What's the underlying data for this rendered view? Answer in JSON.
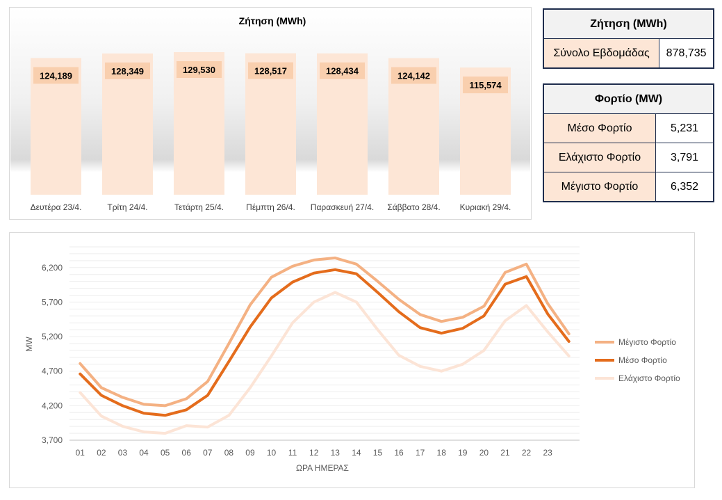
{
  "chart_data": [
    {
      "type": "bar",
      "title": "Ζήτηση (MWh)",
      "categories": [
        "Δευτέρα 23/4.",
        "Τρίτη 24/4.",
        "Τετάρτη 25/4.",
        "Πέμπτη 26/4.",
        "Παρασκευή 27/4.",
        "Σάββατο 28/4.",
        "Κυριακή 29/4."
      ],
      "values": [
        124189,
        128349,
        129530,
        128517,
        128434,
        124142,
        115574
      ],
      "value_labels": [
        "124,189",
        "128,349",
        "129,530",
        "128,517",
        "128,434",
        "124,142",
        "115,574"
      ],
      "bar_color": "#fde6d6",
      "label_bg": "#f9cfae"
    },
    {
      "type": "line",
      "xlabel": "ΩΡΑ ΗΜΕΡΑΣ",
      "ylabel": "MW",
      "ylim": [
        3700,
        6500
      ],
      "yticks": [
        3700,
        4200,
        4700,
        5200,
        5700,
        6200
      ],
      "ytick_labels": [
        "3,700",
        "4,200",
        "4,700",
        "5,200",
        "5,700",
        "6,200"
      ],
      "x": [
        "01",
        "02",
        "03",
        "04",
        "05",
        "06",
        "07",
        "08",
        "09",
        "10",
        "11",
        "12",
        "13",
        "14",
        "15",
        "16",
        "17",
        "18",
        "19",
        "20",
        "21",
        "22",
        "23",
        ""
      ],
      "legend_position": "right",
      "series": [
        {
          "name": "Μέγιστο Φορτίο",
          "color": "#f4b183",
          "values": [
            4810,
            4460,
            4320,
            4220,
            4200,
            4300,
            4550,
            5100,
            5660,
            6060,
            6220,
            6310,
            6340,
            6250,
            6000,
            5740,
            5520,
            5420,
            5480,
            5640,
            6130,
            6250,
            5680,
            5240
          ]
        },
        {
          "name": "Μέσο Φορτίο",
          "color": "#e46c1c",
          "values": [
            4660,
            4350,
            4200,
            4090,
            4060,
            4140,
            4350,
            4840,
            5340,
            5760,
            5990,
            6120,
            6170,
            6110,
            5840,
            5560,
            5330,
            5250,
            5320,
            5500,
            5960,
            6070,
            5530,
            5130
          ]
        },
        {
          "name": "Ελάχιστο Φορτίο",
          "color": "#fce4d6",
          "values": [
            4390,
            4050,
            3900,
            3820,
            3800,
            3910,
            3890,
            4060,
            4460,
            4920,
            5400,
            5700,
            5840,
            5700,
            5300,
            4930,
            4770,
            4700,
            4800,
            5000,
            5430,
            5650,
            5270,
            4920
          ]
        }
      ]
    }
  ],
  "demand_table": {
    "header": "Ζήτηση (MWh)",
    "row_label": "Σύνολο Εβδομάδας",
    "row_value": "878,735"
  },
  "load_table": {
    "header": "Φορτίο (MW)",
    "rows": [
      {
        "label": "Μέσο Φορτίο",
        "value": "5,231"
      },
      {
        "label": "Ελάχιστο Φορτίο",
        "value": "3,791"
      },
      {
        "label": "Μέγιστο Φορτίο",
        "value": "6,352"
      }
    ]
  }
}
